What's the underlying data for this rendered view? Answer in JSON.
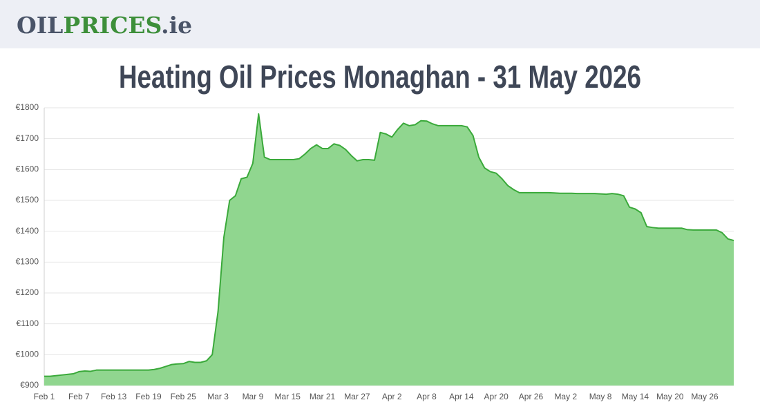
{
  "header": {
    "logo": [
      "OIL",
      "PRICES",
      ".ie"
    ]
  },
  "chart_data": {
    "type": "area",
    "title": "Heating Oil Prices Monaghan - 31 May 2026",
    "categories": [
      "Feb 1",
      null,
      null,
      null,
      null,
      null,
      "Feb 7",
      null,
      null,
      null,
      null,
      null,
      "Feb 13",
      null,
      null,
      null,
      null,
      null,
      "Feb 19",
      null,
      null,
      null,
      null,
      null,
      "Feb 25",
      null,
      null,
      null,
      null,
      null,
      "Mar 3",
      null,
      null,
      null,
      null,
      null,
      "Mar 9",
      null,
      null,
      null,
      null,
      null,
      "Mar 15",
      null,
      null,
      null,
      null,
      null,
      "Mar 21",
      null,
      null,
      null,
      null,
      null,
      "Mar 27",
      null,
      null,
      null,
      null,
      null,
      "Apr 2",
      null,
      null,
      null,
      null,
      null,
      "Apr 8",
      null,
      null,
      null,
      null,
      null,
      "Apr 14",
      null,
      null,
      null,
      null,
      null,
      "Apr 20",
      null,
      null,
      null,
      null,
      null,
      "Apr 26",
      null,
      null,
      null,
      null,
      null,
      "May 2",
      null,
      null,
      null,
      null,
      null,
      "May 8",
      null,
      null,
      null,
      null,
      null,
      "May 14",
      null,
      null,
      null,
      null,
      null,
      "May 20",
      null,
      null,
      null,
      null,
      null,
      "May 26",
      null,
      null,
      null,
      null,
      null
    ],
    "values": [
      930,
      930,
      932,
      934,
      936,
      938,
      945,
      947,
      946,
      950,
      950,
      950,
      950,
      950,
      950,
      950,
      950,
      950,
      950,
      952,
      956,
      962,
      968,
      970,
      971,
      978,
      975,
      975,
      980,
      1000,
      1140,
      1380,
      1500,
      1515,
      1570,
      1575,
      1620,
      1780,
      1640,
      1632,
      1632,
      1632,
      1632,
      1632,
      1635,
      1650,
      1668,
      1680,
      1668,
      1668,
      1683,
      1678,
      1665,
      1645,
      1628,
      1632,
      1632,
      1630,
      1720,
      1715,
      1705,
      1730,
      1750,
      1742,
      1745,
      1758,
      1757,
      1748,
      1742,
      1742,
      1742,
      1742,
      1742,
      1738,
      1710,
      1640,
      1605,
      1593,
      1588,
      1570,
      1548,
      1535,
      1525,
      1525,
      1525,
      1525,
      1525,
      1525,
      1524,
      1523,
      1523,
      1523,
      1522,
      1522,
      1522,
      1522,
      1521,
      1520,
      1522,
      1520,
      1515,
      1478,
      1472,
      1460,
      1415,
      1412,
      1410,
      1410,
      1410,
      1410,
      1410,
      1405,
      1404,
      1404,
      1404,
      1404,
      1404,
      1395,
      1375,
      1370
    ],
    "color": "#3aa93a",
    "fill": "#90d68f",
    "ylim": [
      900,
      1800
    ],
    "yticks": [
      {
        "value": 900,
        "label": "€900"
      },
      {
        "value": 1000,
        "label": "€1000"
      },
      {
        "value": 1100,
        "label": "€1100"
      },
      {
        "value": 1200,
        "label": "€1200"
      },
      {
        "value": 1300,
        "label": "€1300"
      },
      {
        "value": 1400,
        "label": "€1400"
      },
      {
        "value": 1500,
        "label": "€1500"
      },
      {
        "value": 1600,
        "label": "€1600"
      },
      {
        "value": 1700,
        "label": "€1700"
      },
      {
        "value": 1800,
        "label": "€1800"
      }
    ],
    "grid": true
  }
}
